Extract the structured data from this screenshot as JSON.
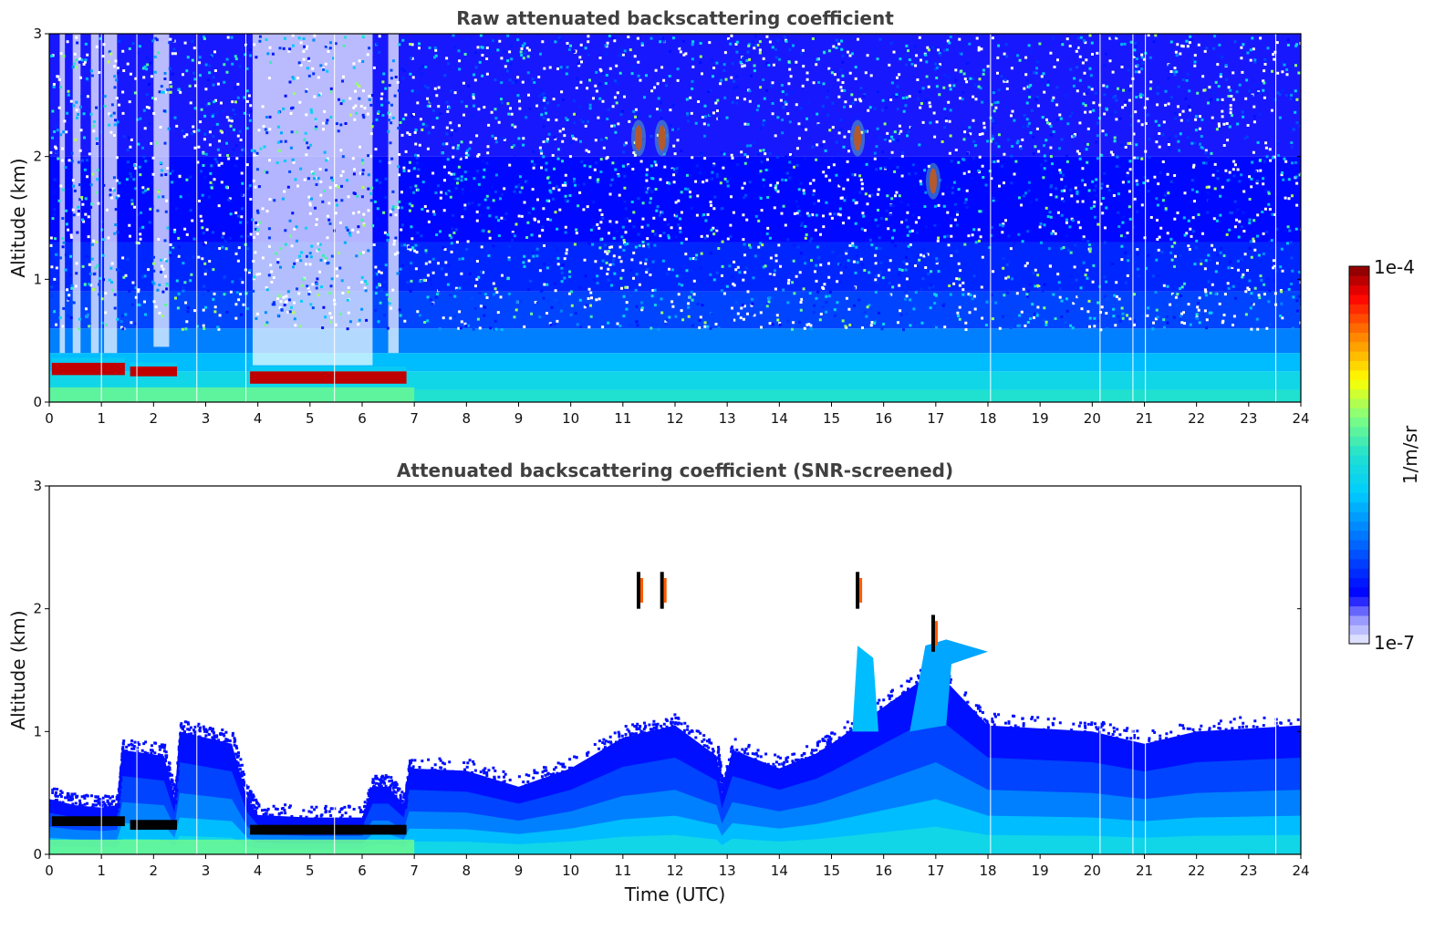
{
  "chart_data": [
    {
      "type": "heatmap",
      "title": "Raw attenuated backscattering coefficient",
      "xlabel": "",
      "ylabel": "Altitude (km)",
      "xlim": [
        0,
        24
      ],
      "ylim": [
        0,
        3
      ],
      "xticks": [
        "0",
        "1",
        "2",
        "3",
        "4",
        "5",
        "6",
        "7",
        "8",
        "9",
        "10",
        "11",
        "12",
        "13",
        "14",
        "15",
        "16",
        "17",
        "18",
        "19",
        "20",
        "21",
        "22",
        "23",
        "24"
      ],
      "yticks": [
        "0",
        "1",
        "2",
        "3"
      ],
      "features": [
        {
          "kind": "layer",
          "t_start": 0.05,
          "t_end": 1.45,
          "alt_center": 0.27,
          "alt_half": 0.05,
          "level": "high"
        },
        {
          "kind": "layer",
          "t_start": 1.55,
          "t_end": 2.45,
          "alt_center": 0.25,
          "alt_half": 0.04,
          "level": "high"
        },
        {
          "kind": "layer",
          "t_start": 3.85,
          "t_end": 6.85,
          "alt_center": 0.2,
          "alt_half": 0.05,
          "level": "high"
        },
        {
          "kind": "cloud",
          "t": 11.3,
          "alt": 2.15,
          "level": "high"
        },
        {
          "kind": "cloud",
          "t": 11.75,
          "alt": 2.15,
          "level": "high"
        },
        {
          "kind": "cloud",
          "t": 15.5,
          "alt": 2.15,
          "level": "high"
        },
        {
          "kind": "cloud",
          "t": 16.95,
          "alt": 1.8,
          "level": "high"
        }
      ]
    },
    {
      "type": "heatmap",
      "title": "Attenuated backscattering coefficient (SNR-screened)",
      "xlabel": "Time (UTC)",
      "ylabel": "Altitude (km)",
      "xlim": [
        0,
        24
      ],
      "ylim": [
        0,
        3
      ],
      "xticks": [
        "0",
        "1",
        "2",
        "3",
        "4",
        "5",
        "6",
        "7",
        "8",
        "9",
        "10",
        "11",
        "12",
        "13",
        "14",
        "15",
        "16",
        "17",
        "18",
        "19",
        "20",
        "21",
        "22",
        "23",
        "24"
      ],
      "yticks": [
        "0",
        "1",
        "2",
        "3"
      ],
      "boundary_layer_top_km": [
        [
          0,
          0.45
        ],
        [
          0.5,
          0.4
        ],
        [
          1.0,
          0.38
        ],
        [
          1.3,
          0.4
        ],
        [
          1.4,
          0.85
        ],
        [
          2.2,
          0.8
        ],
        [
          2.4,
          0.45
        ],
        [
          2.5,
          1.0
        ],
        [
          3.0,
          0.95
        ],
        [
          3.5,
          0.9
        ],
        [
          3.8,
          0.45
        ],
        [
          4.0,
          0.32
        ],
        [
          5.0,
          0.3
        ],
        [
          6.0,
          0.3
        ],
        [
          6.2,
          0.55
        ],
        [
          6.5,
          0.55
        ],
        [
          6.8,
          0.4
        ],
        [
          6.9,
          0.7
        ],
        [
          8.0,
          0.68
        ],
        [
          9.0,
          0.55
        ],
        [
          10.0,
          0.7
        ],
        [
          11.0,
          0.95
        ],
        [
          11.5,
          1.0
        ],
        [
          12.0,
          1.05
        ],
        [
          12.8,
          0.8
        ],
        [
          12.9,
          0.5
        ],
        [
          13.1,
          0.85
        ],
        [
          14.0,
          0.7
        ],
        [
          14.7,
          0.82
        ],
        [
          15.0,
          0.9
        ],
        [
          16.0,
          1.2
        ],
        [
          17.0,
          1.5
        ],
        [
          18.0,
          1.05
        ],
        [
          20.0,
          1.0
        ],
        [
          21.0,
          0.9
        ],
        [
          22.0,
          1.0
        ],
        [
          24.0,
          1.05
        ]
      ]
    }
  ],
  "colorbar": {
    "label": "1/m/sr",
    "max_label": "1e-4",
    "min_label": "1e-7",
    "scale": "log",
    "colormap": "jet"
  }
}
